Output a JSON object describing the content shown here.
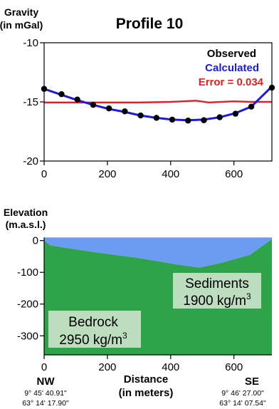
{
  "chart_data": [
    {
      "type": "line",
      "title": "Profile 10",
      "ylabel": "Gravity",
      "ylabel_unit": "(in mGal)",
      "xlim": [
        0,
        720
      ],
      "ylim": [
        -20,
        -10
      ],
      "x_ticks": [
        0,
        200,
        400,
        600
      ],
      "y_ticks": [
        -10,
        -15,
        -20
      ],
      "legend_position": "top-right",
      "legend": {
        "observed": "Observed",
        "calculated": "Calculated",
        "error": "Error = 0.034"
      },
      "colors": {
        "observed": "#000000",
        "calculated": "#1a1ae0",
        "error": "#e02020"
      },
      "series": [
        {
          "name": "Observed",
          "x": [
            0,
            55,
            105,
            155,
            205,
            255,
            305,
            355,
            405,
            455,
            505,
            555,
            605,
            655,
            720
          ],
          "y": [
            -13.9,
            -14.35,
            -14.8,
            -15.25,
            -15.55,
            -15.8,
            -16.15,
            -16.35,
            -16.5,
            -16.58,
            -16.55,
            -16.3,
            -16.0,
            -15.4,
            -13.8
          ]
        },
        {
          "name": "Calculated",
          "x": [
            0,
            55,
            105,
            155,
            205,
            255,
            305,
            355,
            405,
            455,
            505,
            555,
            605,
            655,
            720
          ],
          "y": [
            -13.9,
            -14.4,
            -14.85,
            -15.25,
            -15.6,
            -15.85,
            -16.15,
            -16.35,
            -16.5,
            -16.55,
            -16.5,
            -16.3,
            -15.95,
            -15.4,
            -13.7
          ]
        },
        {
          "name": "Error = 0.034",
          "x": [
            0,
            100,
            200,
            300,
            400,
            480,
            520,
            600,
            650,
            720
          ],
          "y": [
            -15.05,
            -15.05,
            -15.05,
            -15.05,
            -15.0,
            -14.9,
            -15.05,
            -14.95,
            -15.0,
            -15.0
          ]
        }
      ]
    },
    {
      "type": "area",
      "ylabel": "Elevation",
      "ylabel_unit": "(m.a.s.l.)",
      "xlabel": "Distance",
      "xlabel_unit": "(in meters)",
      "xlim": [
        0,
        720
      ],
      "ylim": [
        -360,
        15
      ],
      "x_ticks": [
        0,
        200,
        400,
        600
      ],
      "y_ticks": [
        0,
        -100,
        -200,
        -300
      ],
      "colors": {
        "sediments": "#6b9cf2",
        "bedrock": "#2ea34a"
      },
      "surface": {
        "x": [
          0,
          720
        ],
        "y": [
          10,
          10
        ]
      },
      "sediment_base": {
        "x": [
          0,
          20,
          150,
          300,
          420,
          490,
          560,
          650,
          720
        ],
        "y": [
          0,
          -15,
          -35,
          -55,
          -75,
          -85,
          -70,
          -45,
          5
        ]
      },
      "layers": [
        {
          "name": "Sediments",
          "density": "1900 kg/m",
          "exponent": "3"
        },
        {
          "name": "Bedrock",
          "density": "2950 kg/m",
          "exponent": "3"
        }
      ],
      "endpoints": {
        "left": {
          "direction": "NW",
          "lon": "9° 45' 40.91\"",
          "lat": "63° 14' 17.90\""
        },
        "right": {
          "direction": "SE",
          "lon": "9° 46' 27.00\"",
          "lat": "63° 14' 07.54\""
        }
      }
    }
  ]
}
